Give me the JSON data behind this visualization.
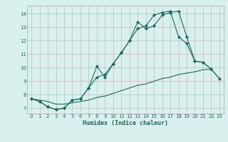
{
  "xlabel": "Humidex (Indice chaleur)",
  "background_color": "#d8f0ee",
  "line_color": "#1a6b5e",
  "grid_color": "#aed8d4",
  "xlim": [
    -0.5,
    23.5
  ],
  "ylim": [
    6.6,
    14.6
  ],
  "xticks": [
    0,
    1,
    2,
    3,
    4,
    5,
    6,
    7,
    8,
    9,
    10,
    11,
    12,
    13,
    14,
    15,
    16,
    17,
    18,
    19,
    20,
    21,
    22,
    23
  ],
  "yticks": [
    7,
    8,
    9,
    10,
    11,
    12,
    13,
    14
  ],
  "series1_x": [
    0,
    1,
    2,
    3,
    4,
    5,
    6,
    7,
    8,
    9,
    10,
    11,
    12,
    13,
    14,
    15,
    16,
    17,
    18,
    19,
    20,
    21,
    22,
    23
  ],
  "series1_y": [
    7.7,
    7.5,
    7.1,
    6.9,
    7.0,
    7.6,
    7.7,
    8.5,
    10.1,
    9.3,
    10.3,
    11.1,
    12.0,
    13.4,
    12.9,
    13.1,
    13.9,
    14.1,
    14.2,
    12.3,
    10.5,
    10.4,
    9.9,
    null
  ],
  "series2_x": [
    0,
    1,
    2,
    3,
    4,
    5,
    6,
    7,
    8,
    9,
    10,
    11,
    12,
    13,
    14,
    15,
    16,
    17,
    18,
    19,
    20,
    21,
    22,
    23
  ],
  "series2_y": [
    7.7,
    7.5,
    7.1,
    6.9,
    7.0,
    7.6,
    7.7,
    8.5,
    9.3,
    9.5,
    10.3,
    11.1,
    12.0,
    12.9,
    13.1,
    13.9,
    14.1,
    14.2,
    12.3,
    11.8,
    10.5,
    10.4,
    9.9,
    9.2
  ],
  "series3_x": [
    0,
    1,
    2,
    3,
    4,
    5,
    6,
    7,
    8,
    9,
    10,
    11,
    12,
    13,
    14,
    15,
    16,
    17,
    18,
    19,
    20,
    21,
    22,
    23
  ],
  "series3_y": [
    7.7,
    7.6,
    7.5,
    7.3,
    7.3,
    7.4,
    7.5,
    7.6,
    7.8,
    7.9,
    8.1,
    8.3,
    8.5,
    8.7,
    8.8,
    9.0,
    9.2,
    9.3,
    9.5,
    9.6,
    9.7,
    9.85,
    9.9,
    9.2
  ]
}
